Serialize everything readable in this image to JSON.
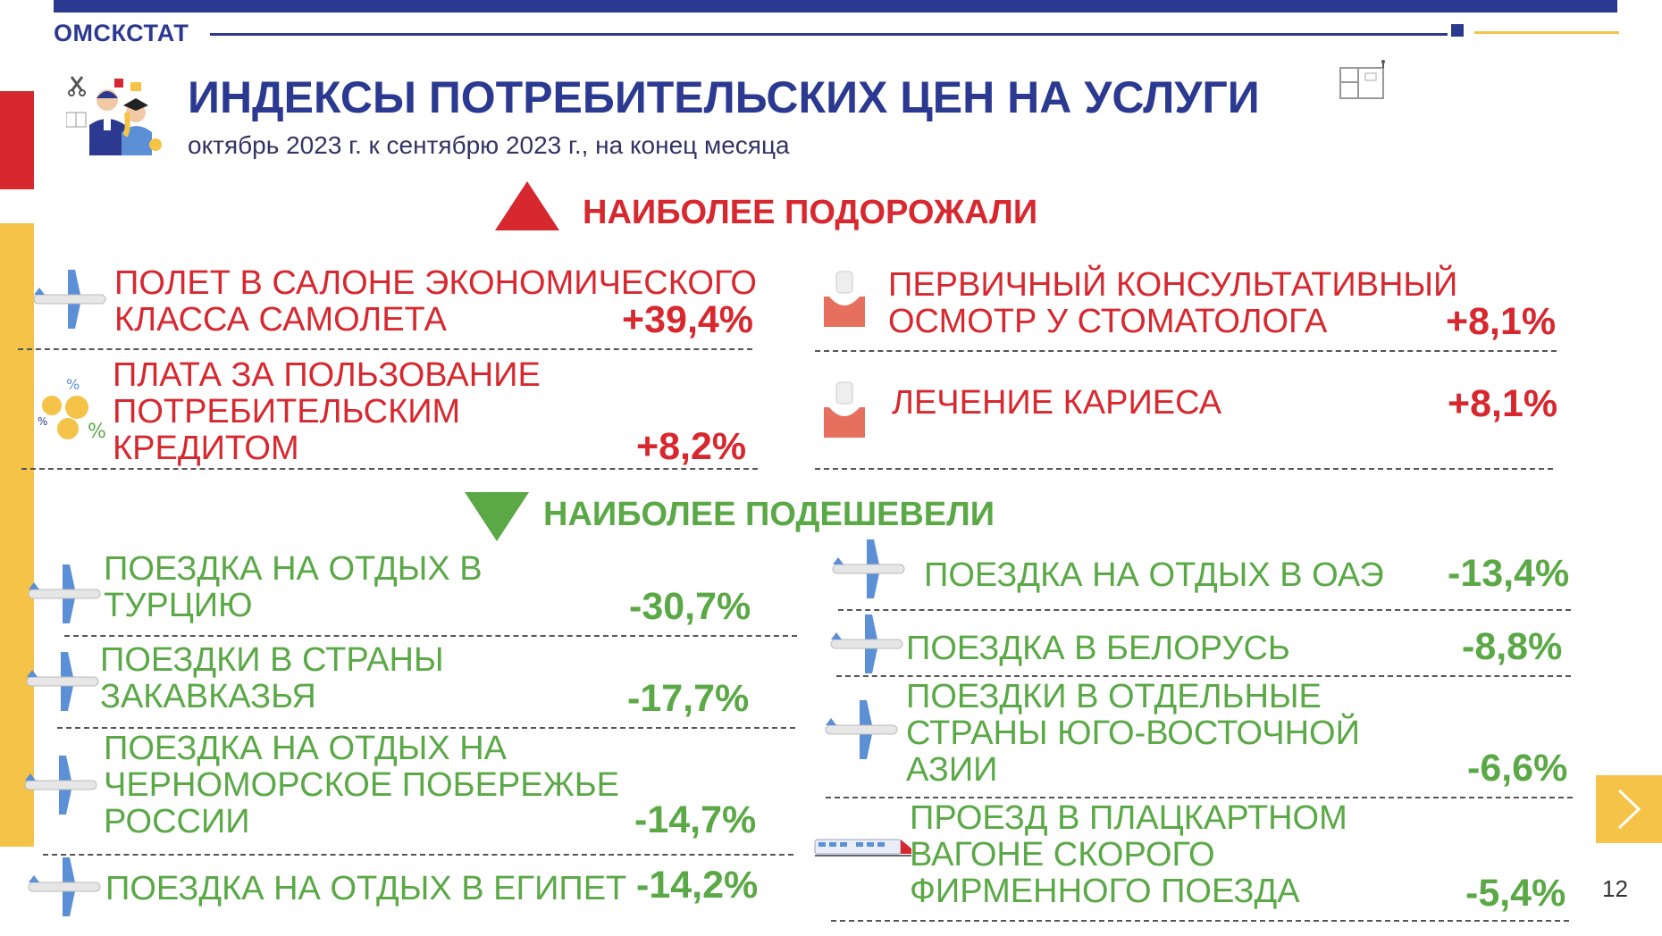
{
  "header": {
    "brand": "ОМСКСТАТ",
    "title": "ИНДЕКСЫ ПОТРЕБИТЕЛЬСКИХ ЦЕН НА УСЛУГИ",
    "subtitle": "октябрь 2023 г. к сентябрю 2023 г., на конец месяца"
  },
  "colors": {
    "brand_blue": "#2b3990",
    "up_red": "#d7282f",
    "down_green": "#5aa846",
    "accent_yellow": "#f5c347"
  },
  "rose": {
    "heading": "НАИБОЛЕЕ ПОДОРОЖАЛИ",
    "items": [
      {
        "label_lines": [
          "ПОЛЕТ В САЛОНЕ ЭКОНОМИЧЕСКОГО",
          "КЛАССА САМОЛЕТА"
        ],
        "value": "+39,4%",
        "icon": "airplane-icon"
      },
      {
        "label_lines": [
          "ПЛАТА ЗА ПОЛЬЗОВАНИЕ",
          "ПОТРЕБИТЕЛЬСКИМ",
          "КРЕДИТОМ"
        ],
        "value": "+8,2%",
        "icon": "coins-icon"
      },
      {
        "label_lines": [
          "ПЕРВИЧНЫЙ КОНСУЛЬТАТИВНЫЙ",
          "ОСМОТР У СТОМАТОЛОГА"
        ],
        "value": "+8,1%",
        "icon": "tooth-icon"
      },
      {
        "label_lines": [
          "ЛЕЧЕНИЕ КАРИЕСА"
        ],
        "value": "+8,1%",
        "icon": "tooth-icon"
      }
    ]
  },
  "fell": {
    "heading": "НАИБОЛЕЕ ПОДЕШЕВЕЛИ",
    "items": [
      {
        "label_lines": [
          "ПОЕЗДКА НА ОТДЫХ В",
          "ТУРЦИЮ"
        ],
        "value": "-30,7%",
        "icon": "airplane-icon"
      },
      {
        "label_lines": [
          "ПОЕЗДКИ В СТРАНЫ",
          "ЗАКАВКАЗЬЯ"
        ],
        "value": "-17,7%",
        "icon": "airplane-icon"
      },
      {
        "label_lines": [
          "ПОЕЗДКА НА ОТДЫХ НА",
          "ЧЕРНОМОРСКОЕ ПОБЕРЕЖЬЕ",
          "РОССИИ"
        ],
        "value": "-14,7%",
        "icon": "airplane-icon"
      },
      {
        "label_lines": [
          "ПОЕЗДКА НА ОТДЫХ В ЕГИПЕТ"
        ],
        "value": "-14,2%",
        "icon": "airplane-icon"
      },
      {
        "label_lines": [
          "ПОЕЗДКА НА ОТДЫХ В ОАЭ"
        ],
        "value": "-13,4%",
        "icon": "airplane-icon"
      },
      {
        "label_lines": [
          "ПОЕЗДКА В БЕЛОРУСЬ"
        ],
        "value": "-8,8%",
        "icon": "airplane-icon"
      },
      {
        "label_lines": [
          "ПОЕЗДКИ В ОТДЕЛЬНЫЕ",
          "СТРАНЫ ЮГО-ВОСТОЧНОЙ",
          "АЗИИ"
        ],
        "value": "-6,6%",
        "icon": "airplane-icon"
      },
      {
        "label_lines": [
          "ПРОЕЗД В ПЛАЦКАРТНОМ",
          "ВАГОНЕ СКОРОГО",
          "ФИРМЕННОГО ПОЕЗДА"
        ],
        "value": "-5,4%",
        "icon": "train-icon"
      }
    ]
  },
  "footer": {
    "page_number": "12"
  }
}
